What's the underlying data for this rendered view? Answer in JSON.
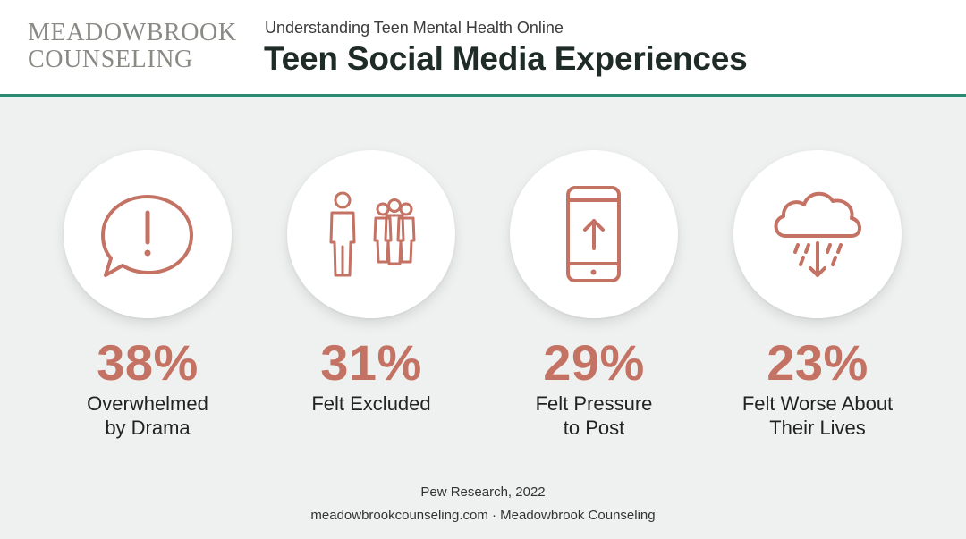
{
  "header": {
    "logo_line1": "MEADOWBROOK",
    "logo_line2": "COUNSELING",
    "subtitle": "Understanding Teen Mental Health Online",
    "title": "Teen Social Media Experiences"
  },
  "colors": {
    "accent": "#c47263",
    "teal_rule": "#2a8a74",
    "background": "#eef1ef"
  },
  "chart_data": {
    "type": "table",
    "title": "Teen Social Media Experiences",
    "subtitle": "Understanding Teen Mental Health Online",
    "unit": "%",
    "items": [
      {
        "value": 38,
        "display": "38%",
        "label_lines": [
          "Overwhelmed",
          "by Drama"
        ],
        "icon": "speech-bubble-exclamation-icon"
      },
      {
        "value": 31,
        "display": "31%",
        "label_lines": [
          "Felt Excluded"
        ],
        "icon": "person-excluded-from-group-icon"
      },
      {
        "value": 29,
        "display": "29%",
        "label_lines": [
          "Felt Pressure",
          "to Post"
        ],
        "icon": "phone-upload-arrow-icon"
      },
      {
        "value": 23,
        "display": "23%",
        "label_lines": [
          "Felt Worse About",
          "Their Lives"
        ],
        "icon": "rain-cloud-down-arrow-icon"
      }
    ]
  },
  "footer": {
    "source": "Pew Research, 2022",
    "credit": "meadowbrookcounseling.com · Meadowbrook Counseling"
  }
}
